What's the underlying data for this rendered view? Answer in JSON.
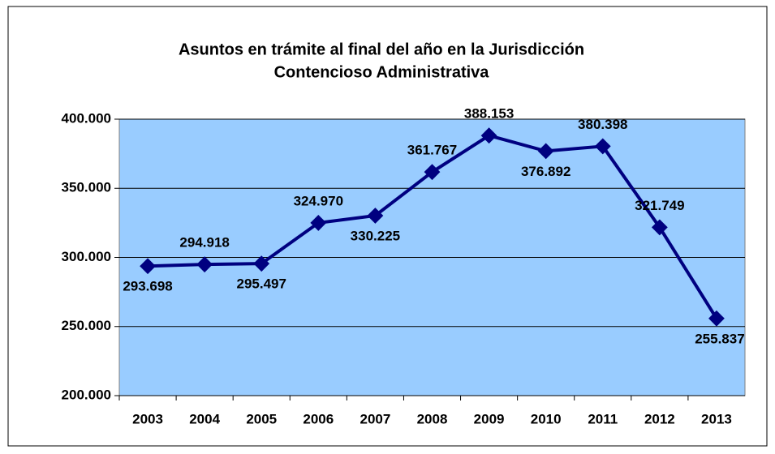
{
  "chart_data": {
    "type": "line",
    "title": [
      "Asuntos en trámite al final del año en la Jurisdicción",
      "Contencioso Administrativa"
    ],
    "categories": [
      "2003",
      "2004",
      "2005",
      "2006",
      "2007",
      "2008",
      "2009",
      "2010",
      "2011",
      "2012",
      "2013"
    ],
    "series": [
      {
        "name": "Asuntos en trámite",
        "color": "#000080",
        "values": [
          293698,
          294918,
          295497,
          324970,
          330225,
          361767,
          388153,
          376892,
          380398,
          321749,
          255837
        ],
        "value_labels": [
          "293.698",
          "294.918",
          "295.497",
          "324.970",
          "330.225",
          "361.767",
          "388.153",
          "376.892",
          "380.398",
          "321.749",
          "255.837"
        ]
      }
    ],
    "ylim": [
      200000,
      400000
    ],
    "yticks": [
      {
        "value": 200000,
        "label": "200.000"
      },
      {
        "value": 250000,
        "label": "250.000"
      },
      {
        "value": 300000,
        "label": "300.000"
      },
      {
        "value": 350000,
        "label": "350.000"
      },
      {
        "value": 400000,
        "label": "400.000"
      }
    ],
    "grid": true,
    "plot_background": "#99ccff"
  }
}
